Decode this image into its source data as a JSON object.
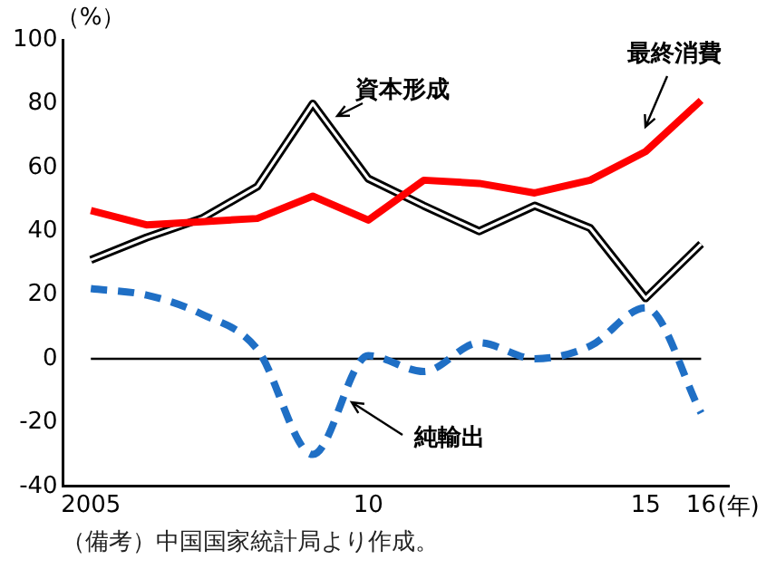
{
  "chart_data": {
    "type": "line",
    "ylabel": "（%）",
    "x": [
      2005,
      2006,
      2007,
      2008,
      2009,
      2010,
      2011,
      2012,
      2013,
      2014,
      2015,
      2016
    ],
    "series": [
      {
        "name": "最終消費",
        "color": "#ff0000",
        "values": [
          46.5,
          42,
          43,
          44,
          51,
          43.5,
          56,
          55,
          52,
          56,
          65,
          81
        ]
      },
      {
        "name": "資本形成",
        "color": "#000000",
        "values": [
          31,
          38,
          44,
          54,
          80,
          56.5,
          48,
          40,
          48,
          41,
          19,
          36
        ]
      },
      {
        "name": "純輸出",
        "color": "#1f6fc5",
        "line_style": "dashed",
        "values": [
          22,
          20,
          14,
          3,
          -30,
          1,
          -4,
          5,
          0,
          4,
          16,
          -17
        ]
      }
    ],
    "xlim": [
      2004.5,
      2016.5
    ],
    "xticks": [
      2005,
      {
        "value": 2010,
        "label": "10"
      },
      {
        "value": 2015,
        "label": "15"
      },
      {
        "value": 2016,
        "label": "16"
      }
    ],
    "xlabel": "(年)",
    "ylim": [
      -40,
      100
    ],
    "yticks": [
      -40,
      -20,
      0,
      20,
      40,
      60,
      80,
      100
    ],
    "ref_lines": [
      {
        "axis": "y",
        "value": 0,
        "color": "#000000"
      }
    ],
    "grid": false,
    "legend": false,
    "marker": "none",
    "annotations": [
      "（備考）中国国家統計局より作成。"
    ]
  }
}
